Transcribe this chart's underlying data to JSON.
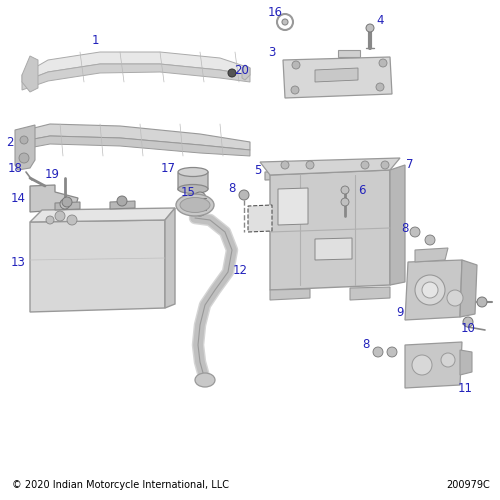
{
  "bg_color": "#ffffff",
  "label_color": "#2222bb",
  "label_fontsize": 8.5,
  "footer_left": "© 2020 Indian Motorcycle International, LLC",
  "footer_right": "200979C",
  "footer_fontsize": 7.0
}
